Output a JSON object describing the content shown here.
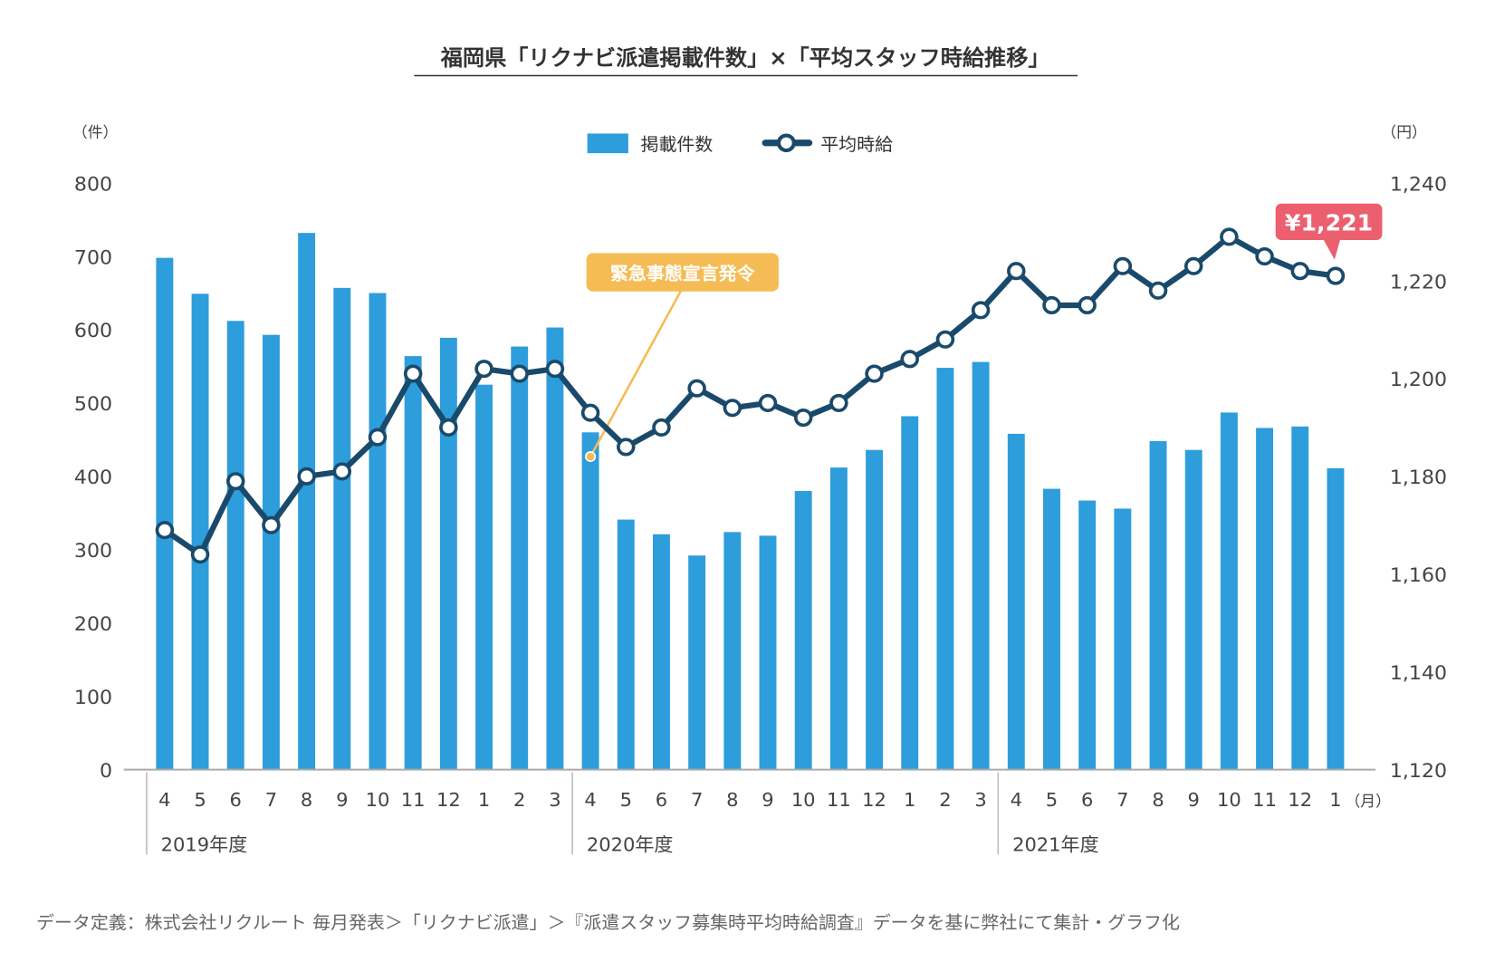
{
  "chart_data": {
    "type": "bar+line",
    "title": "福岡県「リクナビ派遣掲載件数」×「平均スタッフ時給推移」",
    "left_unit": "（件）",
    "right_unit": "（円）",
    "month_unit": "（月）",
    "left_ylim": [
      0,
      800
    ],
    "left_ticks": [
      "0",
      "100",
      "200",
      "300",
      "400",
      "500",
      "600",
      "700",
      "800"
    ],
    "right_ylim": [
      1120,
      1240
    ],
    "right_ticks": [
      "1,120",
      "1,140",
      "1,160",
      "1,180",
      "1,200",
      "1,220",
      "1,240"
    ],
    "categories": [
      "4",
      "5",
      "6",
      "7",
      "8",
      "9",
      "10",
      "11",
      "12",
      "1",
      "2",
      "3",
      "4",
      "5",
      "6",
      "7",
      "8",
      "9",
      "10",
      "11",
      "12",
      "1",
      "2",
      "3",
      "4",
      "5",
      "6",
      "7",
      "8",
      "9",
      "10",
      "11",
      "12",
      "1"
    ],
    "fiscal_years": [
      {
        "label": "2019年度",
        "start": 0
      },
      {
        "label": "2020年度",
        "start": 12
      },
      {
        "label": "2021年度",
        "start": 24
      }
    ],
    "series": [
      {
        "name": "掲載件数",
        "type": "bar",
        "axis": "left",
        "color": "#2e9ddb",
        "values": [
          698,
          649,
          612,
          593,
          732,
          657,
          650,
          564,
          589,
          525,
          577,
          603,
          460,
          341,
          321,
          292,
          324,
          319,
          380,
          412,
          436,
          482,
          548,
          556,
          458,
          383,
          367,
          356,
          448,
          436,
          487,
          466,
          468,
          411
        ]
      },
      {
        "name": "平均時給",
        "type": "line",
        "axis": "right",
        "color": "#1a4a6b",
        "values": [
          1169,
          1164,
          1179,
          1170,
          1180,
          1181,
          1188,
          1201,
          1190,
          1202,
          1201,
          1202,
          1193,
          1186,
          1190,
          1198,
          1194,
          1195,
          1192,
          1195,
          1201,
          1204,
          1208,
          1214,
          1222,
          1215,
          1215,
          1223,
          1218,
          1223,
          1229,
          1225,
          1222,
          1221
        ]
      }
    ],
    "legend_position": "top-center",
    "annotations": [
      {
        "text": "緊急事態宣言発令",
        "index": 12,
        "color": "#f5bc55"
      },
      {
        "text": "¥1,221",
        "index": 33,
        "color": "#ec5f6e"
      }
    ]
  },
  "footnote": "データ定義：株式会社リクルート 毎月発表＞「リクナビ派遣」＞『派遣スタッフ募集時平均時給調査』データを基に弊社にて集計・グラフ化"
}
